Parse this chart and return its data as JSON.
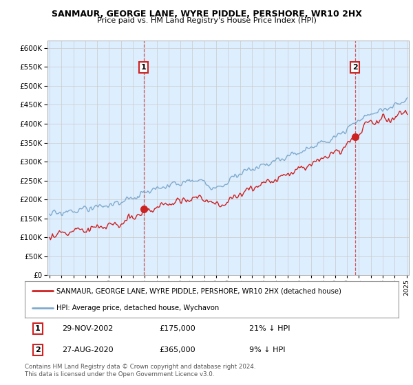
{
  "title": "SANMAUR, GEORGE LANE, WYRE PIDDLE, PERSHORE, WR10 2HX",
  "subtitle": "Price paid vs. HM Land Registry's House Price Index (HPI)",
  "legend_line1": "SANMAUR, GEORGE LANE, WYRE PIDDLE, PERSHORE, WR10 2HX (detached house)",
  "legend_line2": "HPI: Average price, detached house, Wychavon",
  "hpi_color": "#7faacc",
  "price_color": "#cc2222",
  "dashed_color": "#cc4444",
  "annotation1_date": "29-NOV-2002",
  "annotation1_price": "£175,000",
  "annotation1_hpi": "21% ↓ HPI",
  "annotation2_date": "27-AUG-2020",
  "annotation2_price": "£365,000",
  "annotation2_hpi": "9% ↓ HPI",
  "footer": "Contains HM Land Registry data © Crown copyright and database right 2024.\nThis data is licensed under the Open Government Licence v3.0.",
  "ylim_min": 0,
  "ylim_max": 620000,
  "ytick_step": 50000,
  "year_start": 1995,
  "year_end": 2025,
  "background_color": "#ffffff",
  "chart_bg_color": "#ddeeff",
  "grid_color": "#cccccc"
}
